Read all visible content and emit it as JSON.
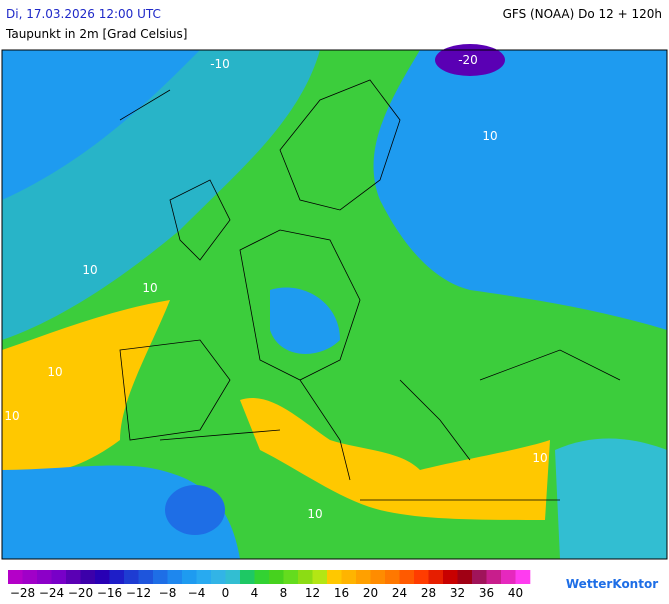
{
  "header": {
    "date": "Di, 17.03.2026 12:00 UTC",
    "title": "Taupunkt in 2m [Grad Celsius]",
    "model": "GFS (NOAA) Do 12 + 120h"
  },
  "map": {
    "contour_labels": [
      "-10",
      "-20",
      "10",
      "10",
      "10",
      "10",
      "10",
      "10",
      "10"
    ]
  },
  "legend": {
    "labels": [
      "−28",
      "−24",
      "−20",
      "−16",
      "−12",
      "−8",
      "−4",
      "0",
      "4",
      "8",
      "12",
      "16",
      "20",
      "24",
      "28",
      "32",
      "36",
      "40"
    ],
    "colors": [
      "#b400c8",
      "#a000c8",
      "#8c00c8",
      "#7800c8",
      "#5a00b4",
      "#3c00aa",
      "#2800b4",
      "#1e1ec8",
      "#1e3cd2",
      "#1e55dc",
      "#1e6ee6",
      "#1e87ee",
      "#1e9bf0",
      "#28aaf0",
      "#32b4e6",
      "#32bed2",
      "#1ec864",
      "#32d232",
      "#46d21e",
      "#64dc1e",
      "#8cdc14",
      "#b4e614",
      "#ffc800",
      "#ffb400",
      "#ffa000",
      "#ff8c00",
      "#ff7800",
      "#ff5a00",
      "#ff3c00",
      "#e61e00",
      "#c80000",
      "#a00014",
      "#a0145a",
      "#c81e8c",
      "#e628be",
      "#ff3cf0"
    ],
    "brand": "WetterKontor"
  }
}
